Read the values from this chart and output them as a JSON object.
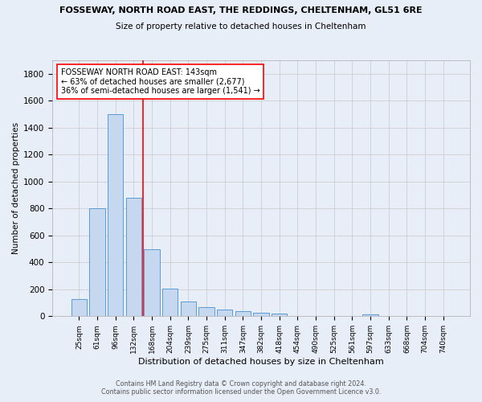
{
  "title1": "FOSSEWAY, NORTH ROAD EAST, THE REDDINGS, CHELTENHAM, GL51 6RE",
  "title2": "Size of property relative to detached houses in Cheltenham",
  "xlabel": "Distribution of detached houses by size in Cheltenham",
  "ylabel": "Number of detached properties",
  "footer1": "Contains HM Land Registry data © Crown copyright and database right 2024.",
  "footer2": "Contains public sector information licensed under the Open Government Licence v3.0.",
  "annotation_line1": "FOSSEWAY NORTH ROAD EAST: 143sqm",
  "annotation_line2": "← 63% of detached houses are smaller (2,677)",
  "annotation_line3": "36% of semi-detached houses are larger (1,541) →",
  "bar_labels": [
    "25sqm",
    "61sqm",
    "96sqm",
    "132sqm",
    "168sqm",
    "204sqm",
    "239sqm",
    "275sqm",
    "311sqm",
    "347sqm",
    "382sqm",
    "418sqm",
    "454sqm",
    "490sqm",
    "525sqm",
    "561sqm",
    "597sqm",
    "633sqm",
    "668sqm",
    "704sqm",
    "740sqm"
  ],
  "bar_values": [
    130,
    800,
    1500,
    880,
    500,
    205,
    108,
    65,
    48,
    35,
    28,
    20,
    0,
    0,
    0,
    0,
    12,
    0,
    0,
    0,
    0
  ],
  "bar_color": "#C5D8F0",
  "bar_edge_color": "#5B9BD5",
  "red_line_x": 3.5,
  "bg_color": "#E8EEF8",
  "grid_color": "#C8C8C8",
  "ylim": [
    0,
    1900
  ],
  "yticks": [
    0,
    200,
    400,
    600,
    800,
    1000,
    1200,
    1400,
    1600,
    1800
  ]
}
